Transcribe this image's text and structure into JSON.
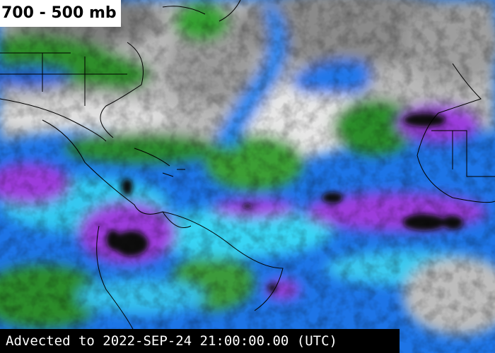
{
  "title": "700 - 500 mb",
  "footer": "Advected to 2022-SEP-24 21:00:00.00 (UTC)"
}
